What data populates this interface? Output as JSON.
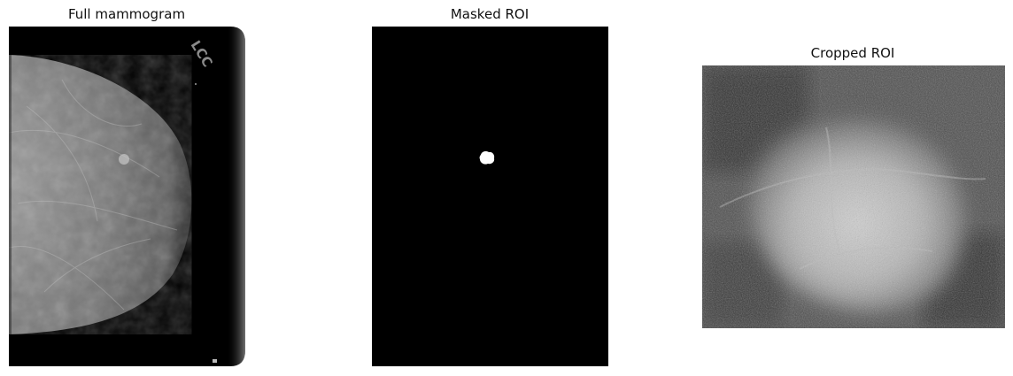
{
  "figure": {
    "panels": [
      {
        "title": "Full mammogram",
        "image_marking": "LCC"
      },
      {
        "title": "Masked ROI"
      },
      {
        "title": "Cropped ROI"
      }
    ]
  },
  "colors": {
    "background": "#ffffff",
    "film_black": "#000000",
    "tissue_bright": "#e0e0e0",
    "mask_white": "#ffffff"
  }
}
